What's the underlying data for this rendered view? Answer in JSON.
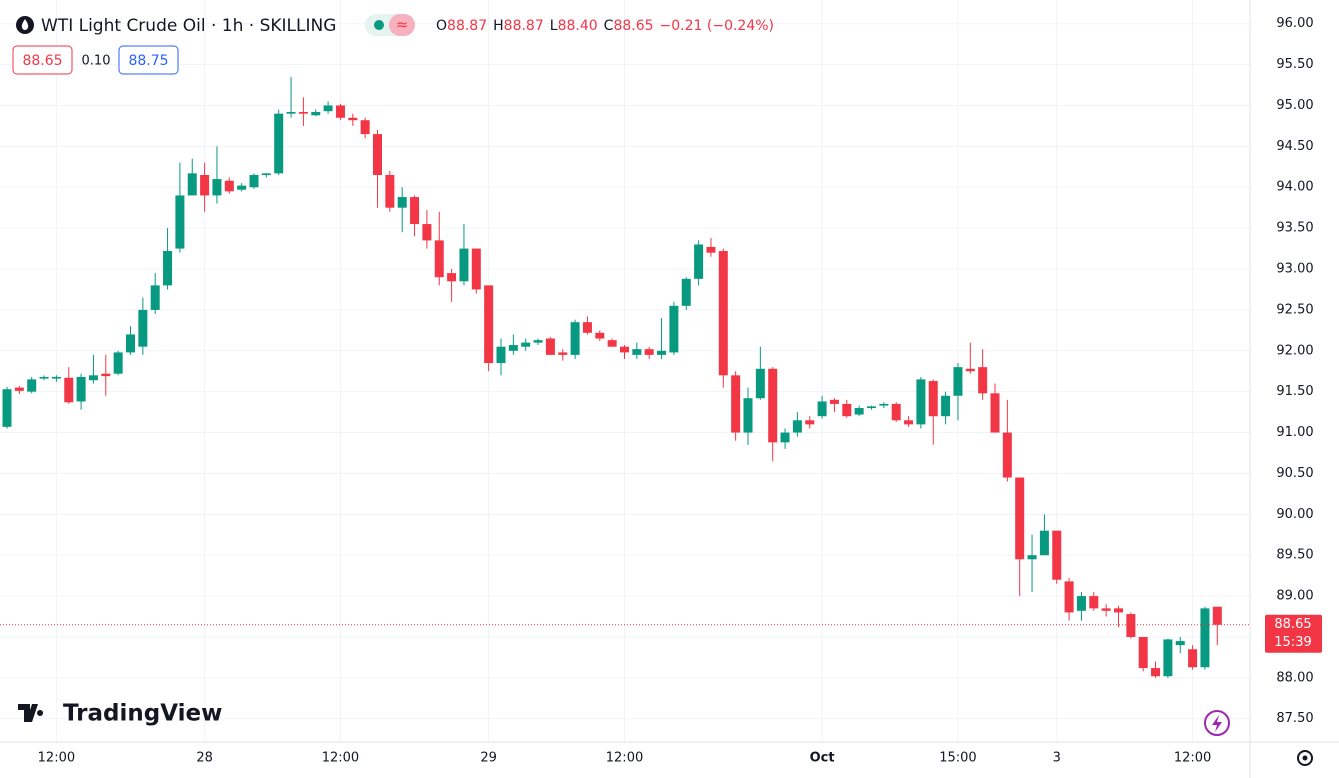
{
  "header": {
    "title": "WTI Light Crude Oil · 1h · SKILLING",
    "ohlc": [
      {
        "key": "O",
        "value": "88.87"
      },
      {
        "key": "H",
        "value": "88.87"
      },
      {
        "key": "L",
        "value": "88.40"
      },
      {
        "key": "C",
        "value": "88.65"
      }
    ],
    "change": "−0.21 (−0.24%)",
    "bid": "88.65",
    "spread": "0.10",
    "ask": "88.75",
    "last_price": "88.65",
    "countdown": "15:39",
    "brand": "TradingView"
  },
  "chart_data": {
    "type": "candlestick",
    "up_color": "#089981",
    "down_color": "#f23645",
    "grid": true,
    "ylim": [
      87.24,
      96.29
    ],
    "yticks": [
      {
        "value": 87.5,
        "label": "87.50"
      },
      {
        "value": 88,
        "label": "88.00"
      },
      {
        "value": 88.5,
        "label": "88.50"
      },
      {
        "value": 89,
        "label": "89.00"
      },
      {
        "value": 89.5,
        "label": "89.50"
      },
      {
        "value": 90,
        "label": "90.00"
      },
      {
        "value": 90.5,
        "label": "90.50"
      },
      {
        "value": 91,
        "label": "91.00"
      },
      {
        "value": 91.5,
        "label": "91.50"
      },
      {
        "value": 92,
        "label": "92.00"
      },
      {
        "value": 92.5,
        "label": "92.50"
      },
      {
        "value": 93,
        "label": "93.00"
      },
      {
        "value": 93.5,
        "label": "93.50"
      },
      {
        "value": 94,
        "label": "94.00"
      },
      {
        "value": 94.5,
        "label": "94.50"
      },
      {
        "value": 95,
        "label": "95.00"
      },
      {
        "value": 95.5,
        "label": "95.50"
      },
      {
        "value": 96,
        "label": "96.00"
      }
    ],
    "last": 88.65,
    "categories": [
      null,
      null,
      null,
      null,
      "12:00",
      null,
      null,
      null,
      null,
      null,
      null,
      null,
      null,
      null,
      null,
      null,
      "28",
      null,
      null,
      null,
      null,
      null,
      null,
      null,
      null,
      null,
      null,
      "12:00",
      null,
      null,
      null,
      null,
      null,
      null,
      null,
      null,
      null,
      null,
      null,
      "29",
      null,
      null,
      null,
      null,
      null,
      null,
      null,
      null,
      null,
      null,
      "12:00",
      null,
      null,
      null,
      null,
      null,
      null,
      null,
      null,
      null,
      null,
      null,
      null,
      null,
      null,
      null,
      "Oct",
      null,
      null,
      null,
      null,
      null,
      null,
      null,
      null,
      null,
      null,
      "15:00",
      null,
      null,
      null,
      null,
      null,
      null,
      null,
      "3",
      null,
      null,
      null,
      null,
      null,
      null,
      null,
      null,
      null,
      null,
      "12:00",
      null,
      null
    ],
    "open": [
      91.07,
      91.55,
      91.5,
      91.66,
      91.66,
      91.67,
      91.38,
      91.64,
      91.72,
      91.72,
      91.98,
      92.05,
      92.5,
      92.8,
      93.25,
      93.9,
      94.15,
      93.9,
      94.08,
      93.97,
      94.0,
      94.15,
      94.17,
      94.9,
      94.92,
      94.88,
      94.93,
      95.0,
      94.85,
      94.82,
      94.65,
      94.15,
      93.75,
      93.88,
      93.55,
      93.35,
      92.95,
      92.85,
      93.25,
      92.8,
      91.85,
      92.0,
      92.05,
      92.1,
      92.15,
      91.98,
      91.95,
      92.35,
      92.22,
      92.13,
      92.05,
      91.95,
      92.02,
      91.95,
      91.98,
      92.55,
      92.88,
      93.27,
      93.22,
      91.7,
      91.0,
      91.42,
      91.78,
      90.88,
      91.0,
      91.15,
      91.2,
      91.4,
      91.35,
      91.22,
      91.3,
      91.33,
      91.35,
      91.15,
      91.1,
      91.63,
      91.2,
      91.45,
      91.78,
      91.8,
      91.48,
      91.0,
      90.45,
      89.45,
      89.5,
      89.8,
      89.18,
      88.82,
      89.0,
      88.85,
      88.85,
      88.78,
      88.5,
      88.12,
      88.02,
      88.4,
      88.35,
      88.13,
      88.87
    ],
    "high": [
      91.56,
      91.57,
      91.68,
      91.7,
      91.7,
      91.8,
      91.72,
      91.95,
      91.95,
      92.0,
      92.3,
      92.65,
      92.95,
      93.5,
      94.3,
      94.35,
      94.3,
      94.5,
      94.12,
      94.05,
      94.17,
      94.17,
      94.95,
      95.35,
      95.1,
      94.95,
      95.05,
      95.02,
      94.9,
      94.85,
      94.7,
      94.2,
      94.0,
      93.9,
      93.72,
      93.7,
      93.0,
      93.55,
      93.25,
      92.8,
      92.15,
      92.2,
      92.15,
      92.15,
      92.17,
      92.02,
      92.38,
      92.42,
      92.25,
      92.15,
      92.07,
      92.1,
      92.05,
      92.4,
      92.6,
      92.9,
      93.35,
      93.38,
      93.25,
      91.75,
      91.55,
      92.05,
      91.8,
      91.05,
      91.25,
      91.2,
      91.45,
      91.42,
      91.4,
      91.33,
      91.33,
      91.37,
      91.37,
      91.2,
      91.68,
      91.65,
      91.5,
      91.85,
      92.1,
      92.02,
      91.6,
      91.4,
      90.45,
      89.75,
      90.0,
      89.8,
      89.22,
      89.05,
      89.05,
      88.9,
      88.88,
      88.8,
      88.5,
      88.2,
      88.48,
      88.5,
      88.4,
      88.87,
      88.87
    ],
    "low": [
      91.05,
      91.47,
      91.48,
      91.64,
      91.62,
      91.35,
      91.28,
      91.6,
      91.45,
      91.7,
      91.95,
      91.95,
      92.45,
      92.75,
      93.2,
      93.9,
      93.7,
      93.8,
      93.92,
      93.95,
      93.98,
      94.12,
      94.15,
      94.85,
      94.75,
      94.87,
      94.9,
      94.82,
      94.75,
      94.6,
      93.75,
      93.7,
      93.45,
      93.4,
      93.25,
      92.8,
      92.6,
      92.8,
      92.7,
      91.75,
      91.7,
      91.95,
      92.0,
      92.07,
      91.95,
      91.88,
      91.9,
      92.2,
      92.12,
      92.05,
      91.9,
      91.9,
      91.9,
      91.9,
      91.95,
      92.5,
      92.8,
      93.15,
      91.55,
      90.9,
      90.85,
      91.4,
      90.65,
      90.8,
      90.95,
      91.05,
      91.17,
      91.25,
      91.18,
      91.2,
      91.28,
      91.3,
      91.13,
      91.07,
      91.05,
      90.85,
      91.1,
      91.15,
      91.72,
      91.4,
      91.0,
      90.4,
      89.0,
      89.05,
      89.5,
      89.15,
      88.7,
      88.7,
      88.82,
      88.75,
      88.62,
      88.48,
      88.08,
      88.0,
      88.0,
      88.3,
      88.1,
      88.1,
      88.4
    ],
    "close": [
      91.53,
      91.51,
      91.65,
      91.68,
      91.68,
      91.37,
      91.68,
      91.7,
      91.69,
      91.98,
      92.2,
      92.5,
      92.8,
      93.22,
      93.9,
      94.17,
      93.9,
      94.1,
      93.95,
      94.02,
      94.15,
      94.17,
      94.9,
      94.92,
      94.9,
      94.92,
      95.0,
      94.85,
      94.82,
      94.65,
      94.15,
      93.75,
      93.88,
      93.55,
      93.35,
      92.9,
      92.85,
      93.25,
      92.75,
      91.85,
      92.05,
      92.07,
      92.1,
      92.13,
      91.95,
      91.95,
      92.35,
      92.22,
      92.15,
      92.05,
      91.98,
      92.02,
      91.95,
      92.0,
      92.55,
      92.88,
      93.3,
      93.2,
      91.7,
      91.0,
      91.42,
      91.78,
      90.88,
      91.0,
      91.15,
      91.1,
      91.38,
      91.35,
      91.2,
      91.3,
      91.32,
      91.35,
      91.15,
      91.1,
      91.65,
      91.2,
      91.45,
      91.8,
      91.75,
      91.48,
      91.0,
      90.45,
      89.45,
      89.5,
      89.8,
      89.2,
      88.8,
      89.0,
      88.85,
      88.82,
      88.8,
      88.5,
      88.12,
      88.02,
      88.47,
      88.45,
      88.13,
      88.85,
      88.65
    ]
  }
}
